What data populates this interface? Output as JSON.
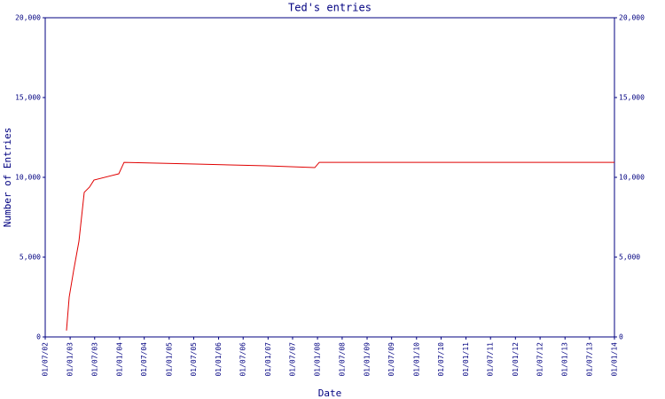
{
  "chart_data": {
    "type": "line",
    "title": "Ted's entries",
    "xlabel": "Date",
    "ylabel": "Number of Entries",
    "x": [
      "2002-12-05",
      "2002-12-25",
      "2003-01-27",
      "2003-03-07",
      "2003-04-15",
      "2003-05-24",
      "2003-06-26",
      "2003-12-26",
      "2004-02-03",
      "2005-07-12",
      "2006-12-17",
      "2007-12-12",
      "2008-01-14",
      "2014-01-01"
    ],
    "series": [
      {
        "name": "Entries",
        "color": "#e00000",
        "values": [
          400,
          2500,
          4170,
          6000,
          9060,
          9390,
          9830,
          10220,
          10940,
          10830,
          10720,
          10610,
          10940,
          10940
        ]
      }
    ],
    "xlim": [
      "2002-07-01",
      "2014-01-01"
    ],
    "xticks": [
      {
        "value": "2002-07-01",
        "label": "01/07/02"
      },
      {
        "value": "2003-01-01",
        "label": "01/01/03"
      },
      {
        "value": "2003-07-01",
        "label": "01/07/03"
      },
      {
        "value": "2004-01-01",
        "label": "01/01/04"
      },
      {
        "value": "2004-07-01",
        "label": "01/07/04"
      },
      {
        "value": "2005-01-01",
        "label": "01/01/05"
      },
      {
        "value": "2005-07-01",
        "label": "01/07/05"
      },
      {
        "value": "2006-01-01",
        "label": "01/01/06"
      },
      {
        "value": "2006-07-01",
        "label": "01/07/06"
      },
      {
        "value": "2007-01-01",
        "label": "01/01/07"
      },
      {
        "value": "2007-07-01",
        "label": "01/07/07"
      },
      {
        "value": "2008-01-01",
        "label": "01/01/08"
      },
      {
        "value": "2008-07-01",
        "label": "01/07/08"
      },
      {
        "value": "2009-01-01",
        "label": "01/01/09"
      },
      {
        "value": "2009-07-01",
        "label": "01/07/09"
      },
      {
        "value": "2010-01-01",
        "label": "01/01/10"
      },
      {
        "value": "2010-07-01",
        "label": "01/07/10"
      },
      {
        "value": "2011-01-01",
        "label": "01/01/11"
      },
      {
        "value": "2011-07-01",
        "label": "01/07/11"
      },
      {
        "value": "2012-01-01",
        "label": "01/01/12"
      },
      {
        "value": "2012-07-01",
        "label": "01/07/12"
      },
      {
        "value": "2013-01-01",
        "label": "01/01/13"
      },
      {
        "value": "2013-07-01",
        "label": "01/07/13"
      },
      {
        "value": "2014-01-01",
        "label": "01/01/14"
      }
    ],
    "ylim": [
      0,
      20000
    ],
    "yticks": [
      0,
      {
        "value": 5000,
        "label": "5,000"
      },
      {
        "value": 10000,
        "label": "10,000"
      },
      {
        "value": 15000,
        "label": "15,000"
      },
      {
        "value": 20000,
        "label": "20,000"
      }
    ],
    "y2lim": [
      0,
      20000
    ],
    "y2ticks": [
      0,
      {
        "value": 5000,
        "label": "5,000"
      },
      {
        "value": 10000,
        "label": "10,000"
      },
      {
        "value": 15000,
        "label": "15,000"
      },
      {
        "value": 20000,
        "label": "20,000"
      }
    ]
  }
}
